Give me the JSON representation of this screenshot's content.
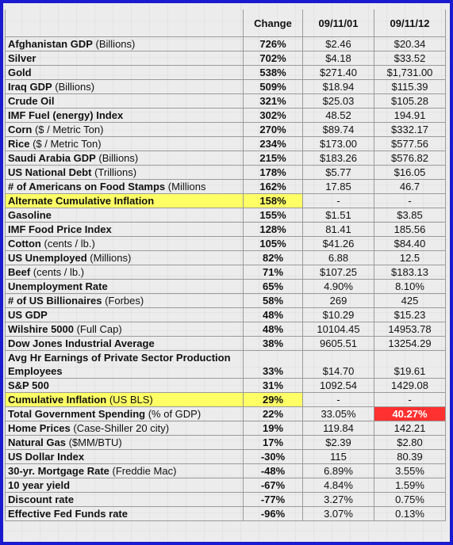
{
  "headers": [
    "",
    "Change",
    "09/11/01",
    "09/11/12"
  ],
  "rows": [
    {
      "name": "Afghanistan GDP",
      "suffix": " (Billions)",
      "change": "726%",
      "v1": "$2.46",
      "v2": "$20.34"
    },
    {
      "name": "Silver",
      "suffix": "",
      "change": "702%",
      "v1": "$4.18",
      "v2": "$33.52"
    },
    {
      "name": "Gold",
      "suffix": "",
      "change": "538%",
      "v1": "$271.40",
      "v2": "$1,731.00"
    },
    {
      "name": "Iraq GDP",
      "suffix": " (Billions)",
      "change": "509%",
      "v1": "$18.94",
      "v2": "$115.39"
    },
    {
      "name": "Crude Oil",
      "suffix": "",
      "change": "321%",
      "v1": "$25.03",
      "v2": "$105.28"
    },
    {
      "name": "IMF Fuel (energy) Index",
      "suffix": "",
      "change": "302%",
      "v1": "48.52",
      "v2": "194.91"
    },
    {
      "name": "Corn",
      "suffix": " ($ / Metric Ton)",
      "change": "270%",
      "v1": "$89.74",
      "v2": "$332.17"
    },
    {
      "name": "Rice",
      "suffix": "  ($ / Metric Ton)",
      "change": "234%",
      "v1": "$173.00",
      "v2": "$577.56"
    },
    {
      "name": "Saudi Arabia GDP",
      "suffix": " (Billions)",
      "change": "215%",
      "v1": "$183.26",
      "v2": "$576.82"
    },
    {
      "name": "US National Debt",
      "suffix": " (Trillions)",
      "change": "178%",
      "v1": "$5.77",
      "v2": "$16.05"
    },
    {
      "name": "# of Americans on Food Stamps",
      "suffix": " (Millions",
      "change": "162%",
      "v1": "17.85",
      "v2": "46.7"
    },
    {
      "name": "Alternate Cumulative Inflation",
      "suffix": "",
      "change": "158%",
      "v1": "-",
      "v2": "-",
      "hl": true
    },
    {
      "name": "Gasoline",
      "suffix": "",
      "change": "155%",
      "v1": "$1.51",
      "v2": "$3.85"
    },
    {
      "name": "IMF Food Price Index",
      "suffix": "",
      "change": "128%",
      "v1": "81.41",
      "v2": "185.56"
    },
    {
      "name": "Cotton",
      "suffix": " (cents / lb.)",
      "change": "105%",
      "v1": "$41.26",
      "v2": "$84.40"
    },
    {
      "name": "US Unemployed",
      "suffix": " (Millions)",
      "change": "82%",
      "v1": "6.88",
      "v2": "12.5"
    },
    {
      "name": "Beef",
      "suffix": " (cents / lb.)",
      "change": "71%",
      "v1": "$107.25",
      "v2": "$183.13"
    },
    {
      "name": "Unemployment Rate",
      "suffix": "",
      "change": "65%",
      "v1": "4.90%",
      "v2": "8.10%"
    },
    {
      "name": "# of US Billionaires",
      "suffix": " (Forbes)",
      "change": "58%",
      "v1": "269",
      "v2": "425"
    },
    {
      "name": "US  GDP",
      "suffix": "",
      "change": "48%",
      "v1": "$10.29",
      "v2": "$15.23"
    },
    {
      "name": "Wilshire 5000",
      "suffix": " (Full Cap)",
      "change": "48%",
      "v1": "10104.45",
      "v2": "14953.78"
    },
    {
      "name": "Dow Jones Industrial Average",
      "suffix": "",
      "change": "38%",
      "v1": "9605.51",
      "v2": "13254.29"
    },
    {
      "name": "Avg Hr Earnings of Private Sector Production  Employees",
      "suffix": "",
      "change": "33%",
      "v1": "$14.70",
      "v2": "$19.61",
      "tall": true
    },
    {
      "name": "S&P 500",
      "suffix": "",
      "change": "31%",
      "v1": "1092.54",
      "v2": "1429.08"
    },
    {
      "name": "Cumulative Inflation",
      "suffix": " (US BLS)",
      "change": "29%",
      "v1": "-",
      "v2": "-",
      "hl": true
    },
    {
      "name": "Total Government Spending",
      "suffix": " (% of GDP)",
      "change": "22%",
      "v1": "33.05%",
      "v2": "40.27%",
      "red": true
    },
    {
      "name": "Home Prices",
      "suffix": " (Case-Shiller 20 city)",
      "change": "19%",
      "v1": "119.84",
      "v2": "142.21"
    },
    {
      "name": "Natural Gas",
      "suffix": " ($MM/BTU)",
      "change": "17%",
      "v1": "$2.39",
      "v2": "$2.80"
    },
    {
      "name": "US Dollar Index",
      "suffix": "",
      "change": "-30%",
      "v1": "115",
      "v2": "80.39"
    },
    {
      "name": "30-yr. Mortgage Rate",
      "suffix": " (Freddie Mac)",
      "change": "-48%",
      "v1": "6.89%",
      "v2": "3.55%"
    },
    {
      "name": "10 year yield",
      "suffix": "",
      "change": "-67%",
      "v1": "4.84%",
      "v2": "1.59%"
    },
    {
      "name": "Discount rate",
      "suffix": "",
      "change": "-77%",
      "v1": "3.27%",
      "v2": "0.75%"
    },
    {
      "name": "Effective Fed Funds rate",
      "suffix": "",
      "change": "-96%",
      "v1": "3.07%",
      "v2": "0.13%"
    }
  ],
  "colors": {
    "border": "#1a1ad0",
    "highlight": "#ffff66",
    "alert": "#ff3030"
  }
}
